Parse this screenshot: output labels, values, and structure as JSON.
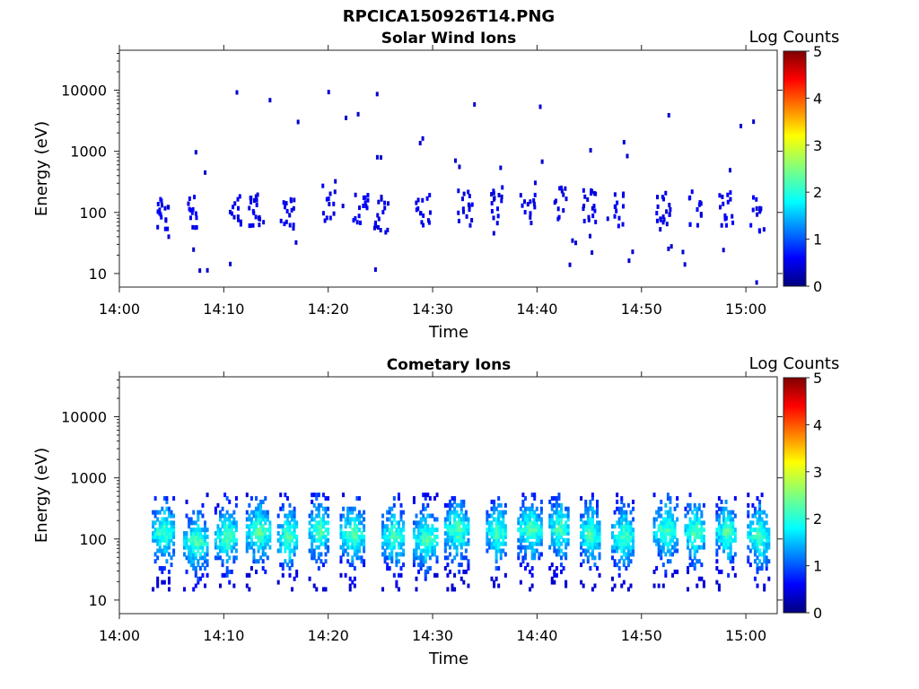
{
  "figure": {
    "title": "RPCICA150926T14.PNG"
  },
  "chart_data": [
    {
      "type": "heatmap",
      "subtitle": "Solar Wind Ions",
      "xlabel": "Time",
      "ylabel": "Energy (eV)",
      "x_ticks": [
        "14:00",
        "14:10",
        "14:20",
        "14:30",
        "14:40",
        "14:50",
        "15:00"
      ],
      "y_ticks": [
        "10",
        "100",
        "1000",
        "10000"
      ],
      "y_scale": "log",
      "ylim": [
        6,
        45000
      ],
      "xlim": [
        "14:00",
        "15:03"
      ],
      "colorbar": {
        "label": "Log Counts",
        "ticks": [
          "0",
          "1",
          "2",
          "3",
          "4",
          "5"
        ],
        "range": [
          0,
          5
        ],
        "colormap": "jet"
      },
      "grid": false,
      "description_style": "sparse",
      "bursts": [
        {
          "t": "14:04",
          "e": 100
        },
        {
          "t": "14:07",
          "e": 120
        },
        {
          "t": "14:11",
          "e": 100
        },
        {
          "t": "14:13",
          "e": 110
        },
        {
          "t": "14:16",
          "e": 90
        },
        {
          "t": "14:20",
          "e": 150
        },
        {
          "t": "14:23",
          "e": 140
        },
        {
          "t": "14:25",
          "e": 100
        },
        {
          "t": "14:29",
          "e": 110
        },
        {
          "t": "14:33",
          "e": 130
        },
        {
          "t": "14:36",
          "e": 140
        },
        {
          "t": "14:39",
          "e": 110
        },
        {
          "t": "14:42",
          "e": 150
        },
        {
          "t": "14:45",
          "e": 130
        },
        {
          "t": "14:48",
          "e": 120
        },
        {
          "t": "14:52",
          "e": 140
        },
        {
          "t": "14:55",
          "e": 130
        },
        {
          "t": "14:58",
          "e": 120
        },
        {
          "t": "15:01",
          "e": 100
        }
      ]
    },
    {
      "type": "heatmap",
      "subtitle": "Cometary Ions",
      "xlabel": "Time",
      "ylabel": "Energy (eV)",
      "x_ticks": [
        "14:00",
        "14:10",
        "14:20",
        "14:30",
        "14:40",
        "14:50",
        "15:00"
      ],
      "y_ticks": [
        "10",
        "100",
        "1000",
        "10000"
      ],
      "y_scale": "log",
      "ylim": [
        6,
        45000
      ],
      "xlim": [
        "14:00",
        "15:03"
      ],
      "colorbar": {
        "label": "Log Counts",
        "ticks": [
          "0",
          "1",
          "2",
          "3",
          "4",
          "5"
        ],
        "range": [
          0,
          5
        ],
        "colormap": "jet"
      },
      "grid": false,
      "description_style": "dense",
      "bursts": [
        {
          "t": "14:04",
          "e": 130
        },
        {
          "t": "14:07",
          "e": 90
        },
        {
          "t": "14:10",
          "e": 110
        },
        {
          "t": "14:13",
          "e": 130
        },
        {
          "t": "14:16",
          "e": 110
        },
        {
          "t": "14:19",
          "e": 140
        },
        {
          "t": "14:22",
          "e": 120
        },
        {
          "t": "14:26",
          "e": 110
        },
        {
          "t": "14:29",
          "e": 100
        },
        {
          "t": "14:32",
          "e": 140
        },
        {
          "t": "14:36",
          "e": 130
        },
        {
          "t": "14:39",
          "e": 140
        },
        {
          "t": "14:42",
          "e": 140
        },
        {
          "t": "14:45",
          "e": 120
        },
        {
          "t": "14:48",
          "e": 110
        },
        {
          "t": "14:52",
          "e": 140
        },
        {
          "t": "14:55",
          "e": 130
        },
        {
          "t": "14:58",
          "e": 130
        },
        {
          "t": "15:01",
          "e": 110
        }
      ]
    }
  ]
}
